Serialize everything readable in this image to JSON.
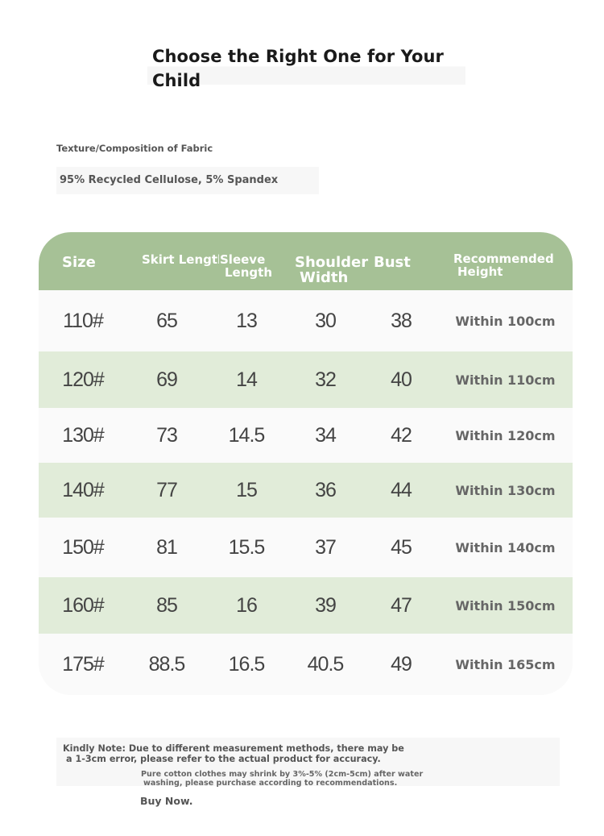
{
  "title": "Choose the Right One for Your Child",
  "fabric": {
    "label": "Texture/Composition of Fabric",
    "value": "95% Recycled Cellulose, 5% Spandex"
  },
  "table": {
    "headers": {
      "size": "Size",
      "skirt_length": "Skirt Length",
      "sleeve_length_1": "Sleeve",
      "sleeve_length_2": "Length",
      "shoulder_width_1": "Shoulder",
      "shoulder_width_2": "Width",
      "bust": "Bust",
      "height_1": "Recommended",
      "height_2": "Height"
    },
    "rows": [
      [
        "110#",
        "65",
        "13",
        "30",
        "38",
        "Within 100cm"
      ],
      [
        "120#",
        "69",
        "14",
        "32",
        "40",
        "Within 110cm"
      ],
      [
        "130#",
        "73",
        "14.5",
        "34",
        "42",
        "Within 120cm"
      ],
      [
        "140#",
        "77",
        "15",
        "36",
        "44",
        "Within 130cm"
      ],
      [
        "150#",
        "81",
        "15.5",
        "37",
        "45",
        "Within 140cm"
      ],
      [
        "160#",
        "85",
        "16",
        "39",
        "47",
        "Within 150cm"
      ],
      [
        "175#",
        "88.5",
        "16.5",
        "40.5",
        "49",
        "Within 165cm"
      ]
    ]
  },
  "notes": {
    "kindly_note_1": "Kindly Note: Due to different measurement methods, there may be",
    "kindly_note_2": "a 1-3cm error, please refer to the actual product for accuracy.",
    "shrink_1": "Pure cotton clothes may shrink by 3%-5% (2cm-5cm) after water",
    "shrink_2": "washing, please purchase according to recommendations.",
    "buy_now": "Buy Now."
  },
  "colors": {
    "header_green": "#a6c196",
    "row_green": "#e1ecd9",
    "row_white": "#fafafa"
  }
}
